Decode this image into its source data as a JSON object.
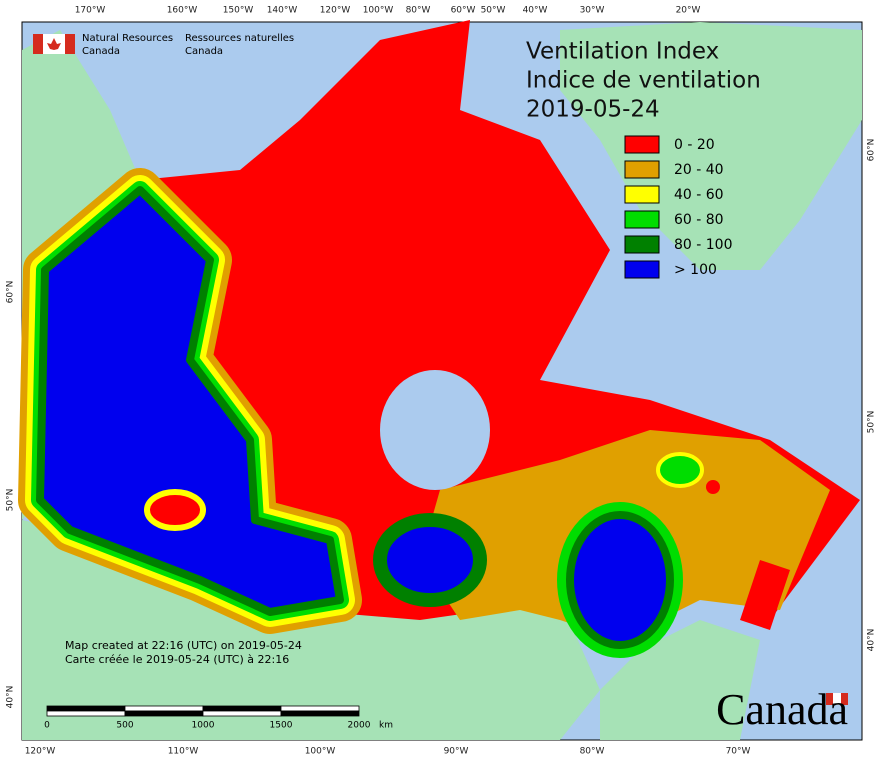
{
  "header": {
    "agency_en": [
      "Natural Resources",
      "Canada"
    ],
    "agency_fr": [
      "Ressources naturelles",
      "Canada"
    ]
  },
  "title": [
    "Ventilation Index",
    "Indice de ventilation",
    "2019-05-24"
  ],
  "legend": [
    {
      "label": "0 - 20",
      "color": "#ff0000"
    },
    {
      "label": "20 - 40",
      "color": "#e0a000"
    },
    {
      "label": "40 - 60",
      "color": "#ffff00"
    },
    {
      "label": "60 - 80",
      "color": "#00dd00"
    },
    {
      "label": "80 - 100",
      "color": "#008000"
    },
    {
      "label": "> 100",
      "color": "#0000ee"
    }
  ],
  "graticule": {
    "top": [
      "170°W",
      "160°W",
      "150°W",
      "140°W",
      "120°W",
      "100°W",
      "80°W",
      "60°W",
      "50°W",
      "40°W",
      "30°W",
      "20°W"
    ],
    "bottom": [
      "120°W",
      "110°W",
      "100°W",
      "90°W",
      "80°W",
      "70°W"
    ],
    "left": [
      "60°N",
      "50°N",
      "40°N"
    ],
    "right": [
      "60°N",
      "50°N",
      "40°N"
    ]
  },
  "notes": [
    "Map created at 22:16 (UTC) on 2019-05-24",
    "Carte créée le 2019-05-24 (UTC) à 22:16"
  ],
  "scale_bar": {
    "labels": [
      0,
      500,
      1000,
      1500,
      2000
    ],
    "unit": "km"
  },
  "wordmark": "Canada"
}
